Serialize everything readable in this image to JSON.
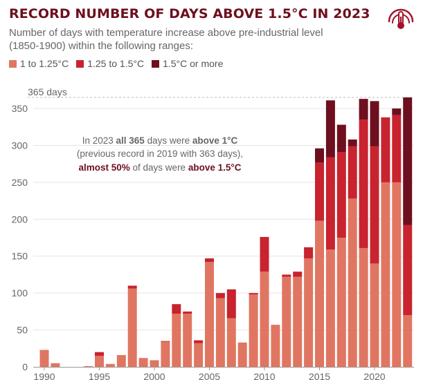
{
  "header": {
    "title": "RECORD NUMBER OF DAYS ABOVE 1.5°C IN 2023",
    "subtitle": "Number of days with temperature increase above pre-industrial level (1850-1900) within the following ranges:"
  },
  "logo": {
    "name": "copernicus-climate-thermometer-logo"
  },
  "colors": {
    "low": "#e07661",
    "mid": "#c8232f",
    "high": "#6d0f1f",
    "grid": "#e4e4e4",
    "text": "#666666"
  },
  "legend": [
    {
      "label": "1 to 1.25°C",
      "color": "#e07661"
    },
    {
      "label": "1.25 to 1.5°C",
      "color": "#c8232f"
    },
    {
      "label": "1.5°C or more",
      "color": "#6d0f1f"
    }
  ],
  "annotation": {
    "line1_a": "In 2023 ",
    "line1_b": "all 365",
    "line1_c": " days were ",
    "line1_d": "above 1°C",
    "line2": "(previous record in 2019 with 363 days),",
    "line3_a": "almost 50%",
    "line3_b": " of days were ",
    "line3_c": "above 1.5°C"
  },
  "chart_data": {
    "type": "bar",
    "stacked": true,
    "title": "RECORD NUMBER OF DAYS ABOVE 1.5°C IN 2023",
    "xlabel": "",
    "ylabel": "",
    "ylim": [
      0,
      365
    ],
    "yticks": [
      0,
      50,
      100,
      150,
      200,
      250,
      300,
      350
    ],
    "xticks": [
      1990,
      1995,
      2000,
      2005,
      2010,
      2015,
      2020
    ],
    "reference_line": {
      "value": 365,
      "label": "365 days"
    },
    "categories": [
      1990,
      1991,
      1992,
      1993,
      1994,
      1995,
      1996,
      1997,
      1998,
      1999,
      2000,
      2001,
      2002,
      2003,
      2004,
      2005,
      2006,
      2007,
      2008,
      2009,
      2010,
      2011,
      2012,
      2013,
      2014,
      2015,
      2016,
      2017,
      2018,
      2019,
      2020,
      2021,
      2022,
      2023
    ],
    "series": [
      {
        "name": "1 to 1.25°C",
        "values": [
          23,
          5,
          0,
          0,
          1,
          15,
          4,
          16,
          106,
          12,
          9,
          34,
          72,
          72,
          32,
          142,
          93,
          66,
          33,
          98,
          129,
          57,
          122,
          122,
          147,
          198,
          159,
          175,
          228,
          161,
          140,
          250,
          250,
          70
        ]
      },
      {
        "name": "1.25 to 1.5°C",
        "values": [
          0,
          0,
          0,
          0,
          0,
          5,
          0,
          0,
          4,
          0,
          0,
          1,
          13,
          3,
          4,
          5,
          7,
          39,
          0,
          2,
          47,
          0,
          3,
          7,
          15,
          79,
          125,
          116,
          71,
          174,
          159,
          88,
          91,
          122
        ]
      },
      {
        "name": "1.5°C or more",
        "values": [
          0,
          0,
          0,
          0,
          0,
          0,
          0,
          0,
          0,
          0,
          0,
          0,
          0,
          0,
          0,
          0,
          0,
          0,
          0,
          0,
          0,
          0,
          0,
          0,
          0,
          19,
          77,
          37,
          9,
          28,
          61,
          0,
          9,
          173
        ]
      }
    ]
  }
}
